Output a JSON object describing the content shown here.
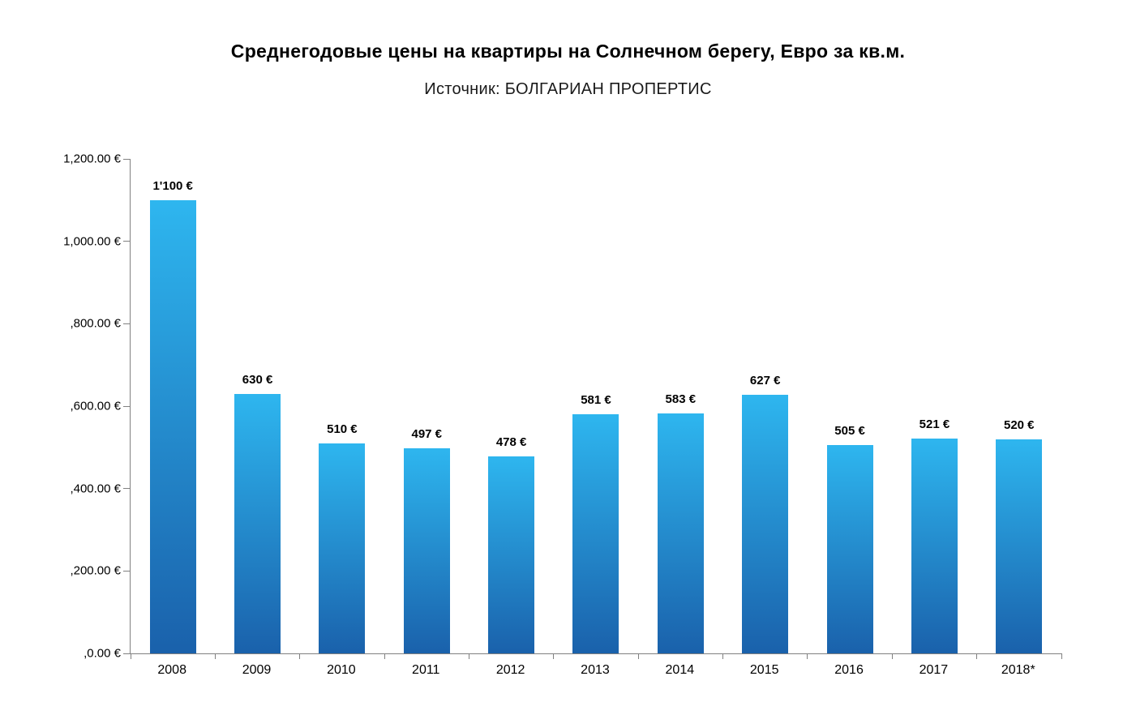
{
  "header": {
    "title": "Среднегодовые цены на квартиры на Солнечном берегу, Евро за кв.м.",
    "subtitle": "Источник: БОЛГАРИАН ПРОПЕРТИС"
  },
  "chart_data": {
    "type": "bar",
    "title": "Среднегодовые цены на квартиры на Солнечном берегу, Евро за кв.м.",
    "subtitle": "Источник: БОЛГАРИАН ПРОПЕРТИС",
    "categories": [
      "2008",
      "2009",
      "2010",
      "2011",
      "2012",
      "2013",
      "2014",
      "2015",
      "2016",
      "2017",
      "2018*"
    ],
    "values": [
      1100,
      630,
      510,
      497,
      478,
      581,
      583,
      627,
      505,
      521,
      520
    ],
    "data_labels": [
      "1'100 €",
      "630 €",
      "510 €",
      "497 €",
      "478 €",
      "581 €",
      "583 €",
      "627 €",
      "505 €",
      "521 €",
      "520 €"
    ],
    "y_tick_labels": [
      "1,200.00 €",
      "1,000.00 €",
      ",800.00 €",
      ",600.00 €",
      ",400.00 €",
      ",200.00 €",
      ",0.00 €"
    ],
    "ylim": [
      0,
      1200
    ],
    "xlabel": "",
    "ylabel": "",
    "grid": false,
    "legend": null,
    "bar_color_top": "#2eb6ef",
    "bar_color_bottom": "#1a61ab",
    "axis_color": "#808080"
  }
}
